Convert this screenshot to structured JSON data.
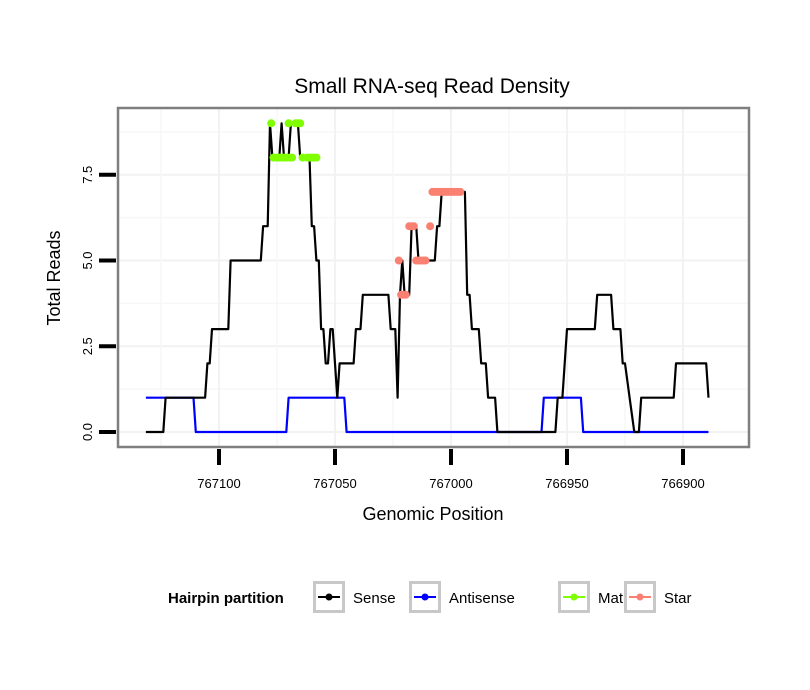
{
  "chart_data": {
    "type": "line",
    "title": "Small RNA-seq Read Density",
    "xlabel": "Genomic Position",
    "ylabel": "Total Reads",
    "x_reversed": true,
    "xlim": [
      767131.5,
      766876
    ],
    "ylim": [
      -0.3,
      9.3
    ],
    "xticks": [
      767100,
      767050,
      767000,
      766950,
      766900
    ],
    "xtick_labels": [
      "767100",
      "767050",
      "767000",
      "766950",
      "766900"
    ],
    "yticks": [
      0.0,
      2.5,
      5.0,
      7.5
    ],
    "ytick_labels": [
      "0.0",
      "2.5",
      "5.0",
      "7.5"
    ],
    "grid": true,
    "legend": {
      "title": "Hairpin partition",
      "position": "bottom",
      "entries": [
        {
          "name": "Sense",
          "color": "#000000"
        },
        {
          "name": "Antisense",
          "color": "#0000ff"
        },
        {
          "name": "Mature",
          "color": "#7fff00"
        },
        {
          "name": "Star",
          "color": "#fa8072"
        }
      ]
    },
    "series": [
      {
        "name": "Sense",
        "color": "#000000",
        "markers": false,
        "points": [
          [
            767131.5,
            0
          ],
          [
            767124,
            0
          ],
          [
            767123,
            1
          ],
          [
            767106,
            1
          ],
          [
            767105,
            2
          ],
          [
            767104,
            2
          ],
          [
            767103,
            3
          ],
          [
            767096,
            3
          ],
          [
            767095,
            5
          ],
          [
            767082,
            5
          ],
          [
            767081,
            6
          ],
          [
            767079,
            6
          ],
          [
            767078,
            9
          ],
          [
            767077,
            8
          ],
          [
            767074,
            8
          ],
          [
            767073,
            9
          ],
          [
            767072,
            8
          ],
          [
            767070,
            8
          ],
          [
            767069,
            9
          ],
          [
            767066,
            9
          ],
          [
            767065,
            8
          ],
          [
            767061,
            8
          ],
          [
            767060,
            6
          ],
          [
            767059,
            6
          ],
          [
            767058,
            5
          ],
          [
            767057,
            5
          ],
          [
            767056,
            3
          ],
          [
            767055,
            3
          ],
          [
            767054,
            2
          ],
          [
            767053,
            2
          ],
          [
            767052,
            3
          ],
          [
            767051,
            3
          ],
          [
            767050,
            2
          ],
          [
            767049,
            1
          ],
          [
            767048,
            2
          ],
          [
            767042,
            2
          ],
          [
            767041,
            3
          ],
          [
            767039,
            3
          ],
          [
            767038,
            4
          ],
          [
            767027,
            4
          ],
          [
            767026,
            3
          ],
          [
            767024,
            3
          ],
          [
            767023,
            1
          ],
          [
            767022,
            4
          ],
          [
            767021,
            5
          ],
          [
            767020,
            4
          ],
          [
            767018,
            4
          ],
          [
            767017,
            6
          ],
          [
            767015,
            6
          ],
          [
            767014,
            5
          ],
          [
            767007,
            5
          ],
          [
            767006,
            6
          ],
          [
            767005,
            6
          ],
          [
            767004,
            7
          ],
          [
            766994,
            7
          ],
          [
            766993,
            4
          ],
          [
            766992,
            4
          ],
          [
            766991,
            3
          ],
          [
            766988,
            3
          ],
          [
            766987,
            2
          ],
          [
            766985,
            2
          ],
          [
            766984,
            1
          ],
          [
            766981,
            1
          ],
          [
            766980,
            0
          ],
          [
            766955,
            0
          ],
          [
            766954,
            1
          ],
          [
            766952,
            1
          ],
          [
            766950,
            3
          ],
          [
            766938,
            3
          ],
          [
            766937,
            4
          ],
          [
            766931,
            4
          ],
          [
            766930,
            3
          ],
          [
            766927,
            3
          ],
          [
            766926,
            2
          ],
          [
            766925,
            2
          ],
          [
            766923,
            1
          ],
          [
            766921,
            0
          ],
          [
            766919,
            0
          ],
          [
            766918,
            1
          ],
          [
            766904,
            1
          ],
          [
            766903,
            2
          ],
          [
            766890,
            2
          ],
          [
            766889,
            1
          ]
        ]
      },
      {
        "name": "Antisense",
        "color": "#0000ff",
        "markers": false,
        "points": [
          [
            767131.5,
            1
          ],
          [
            767111,
            1
          ],
          [
            767110,
            0
          ],
          [
            767071,
            0
          ],
          [
            767070,
            1
          ],
          [
            767046,
            1
          ],
          [
            767045,
            0
          ],
          [
            766961,
            0
          ],
          [
            766960,
            1
          ],
          [
            766944,
            1
          ],
          [
            766943,
            0
          ],
          [
            766889,
            0
          ]
        ]
      },
      {
        "name": "Mature",
        "color": "#7fff00",
        "markers": true,
        "points": [
          [
            767077.5,
            9
          ],
          [
            767076.5,
            8
          ],
          [
            767075,
            8
          ],
          [
            767074,
            8
          ],
          [
            767073,
            8
          ],
          [
            767072,
            8
          ],
          [
            767071,
            8
          ],
          [
            767070,
            9
          ],
          [
            767069.5,
            8
          ],
          [
            767068.5,
            8
          ],
          [
            767067,
            9
          ],
          [
            767066,
            9
          ],
          [
            767065,
            9
          ],
          [
            767064,
            8
          ],
          [
            767062,
            8
          ],
          [
            767061,
            8
          ],
          [
            767060,
            8
          ],
          [
            767059,
            8
          ],
          [
            767058,
            8
          ]
        ]
      },
      {
        "name": "Star",
        "color": "#fa8072",
        "markers": true,
        "points": [
          [
            767022.5,
            5
          ],
          [
            767021.5,
            4
          ],
          [
            767020.5,
            4
          ],
          [
            767019.5,
            4
          ],
          [
            767018,
            6
          ],
          [
            767017,
            6
          ],
          [
            767016,
            6
          ],
          [
            767015,
            5
          ],
          [
            767014,
            5
          ],
          [
            767013,
            5
          ],
          [
            767012,
            5
          ],
          [
            767011,
            5
          ],
          [
            767009,
            6
          ],
          [
            767008,
            7
          ],
          [
            767007,
            7
          ],
          [
            767006,
            7
          ],
          [
            767005,
            7
          ],
          [
            767004,
            7
          ],
          [
            767003,
            7
          ],
          [
            767002,
            7
          ],
          [
            767001,
            7
          ],
          [
            767000,
            7
          ],
          [
            766999,
            7
          ],
          [
            766998,
            7
          ],
          [
            766997,
            7
          ],
          [
            766996,
            7
          ]
        ]
      }
    ]
  }
}
